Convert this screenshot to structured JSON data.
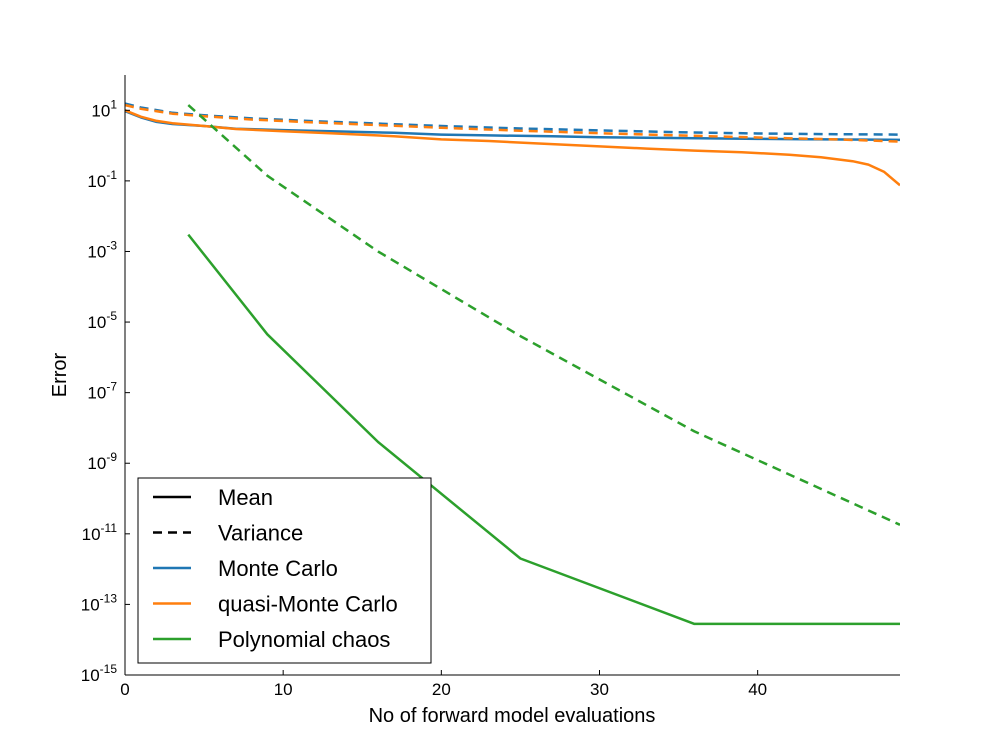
{
  "chart_data": {
    "type": "line",
    "xlabel": "No of forward model evaluations",
    "ylabel": "Error",
    "xlim": [
      0,
      49
    ],
    "ylim": [
      1e-15,
      100
    ],
    "yscale": "log",
    "grid": false,
    "legend_position": "bottom-left",
    "x_ticks": [
      {
        "value": 0,
        "label": "0"
      },
      {
        "value": 10,
        "label": "10"
      },
      {
        "value": 20,
        "label": "20"
      },
      {
        "value": 30,
        "label": "30"
      },
      {
        "value": 40,
        "label": "40"
      }
    ],
    "y_ticks": [
      {
        "value": 10.0,
        "base": "10",
        "exp": "1"
      },
      {
        "value": 0.1,
        "base": "10",
        "exp": "-1"
      },
      {
        "value": 0.001,
        "base": "10",
        "exp": "-3"
      },
      {
        "value": 1e-05,
        "base": "10",
        "exp": "-5"
      },
      {
        "value": 1e-07,
        "base": "10",
        "exp": "-7"
      },
      {
        "value": 1e-09,
        "base": "10",
        "exp": "-9"
      },
      {
        "value": 1e-11,
        "base": "10",
        "exp": "-11"
      },
      {
        "value": 1e-13,
        "base": "10",
        "exp": "-13"
      },
      {
        "value": 1e-15,
        "base": "10",
        "exp": "-15"
      }
    ],
    "legend": [
      {
        "label": "Mean",
        "color": "#000000",
        "dash": false
      },
      {
        "label": "Variance",
        "color": "#000000",
        "dash": true
      },
      {
        "label": "Monte Carlo",
        "color": "#1f77b4",
        "dash": false
      },
      {
        "label": "quasi-Monte Carlo",
        "color": "#ff7f0e",
        "dash": false
      },
      {
        "label": "Polynomial chaos",
        "color": "#2ca02c",
        "dash": false
      }
    ],
    "series": [
      {
        "method": "Monte Carlo",
        "statistic": "Mean",
        "color": "#1f77b4",
        "dash": false,
        "x": [
          0,
          1,
          2,
          3,
          5,
          7,
          10,
          13,
          17,
          20,
          23,
          27,
          30,
          33,
          37,
          40,
          43,
          47,
          49
        ],
        "y": [
          9.5,
          6.3,
          4.7,
          4.1,
          3.6,
          3.0,
          2.75,
          2.55,
          2.3,
          2.05,
          1.95,
          1.83,
          1.73,
          1.66,
          1.6,
          1.55,
          1.52,
          1.48,
          1.45
        ]
      },
      {
        "method": "Monte Carlo",
        "statistic": "Variance",
        "color": "#1f77b4",
        "dash": true,
        "x": [
          0,
          1,
          3,
          5,
          8,
          12,
          16,
          20,
          25,
          30,
          35,
          40,
          45,
          49
        ],
        "y": [
          15.5,
          12,
          8.5,
          7.2,
          5.9,
          4.9,
          4.2,
          3.6,
          3.05,
          2.7,
          2.4,
          2.2,
          2.1,
          2.05
        ]
      },
      {
        "method": "quasi-Monte Carlo",
        "statistic": "Mean",
        "color": "#ff7f0e",
        "dash": false,
        "x": [
          0,
          1,
          2,
          3,
          5,
          7,
          10,
          13,
          17,
          20,
          23,
          26,
          30,
          33,
          36,
          39,
          42,
          44,
          46,
          47,
          48,
          49
        ],
        "y": [
          10,
          6.6,
          5.0,
          4.3,
          3.6,
          2.95,
          2.55,
          2.25,
          1.85,
          1.5,
          1.35,
          1.15,
          0.95,
          0.82,
          0.72,
          0.65,
          0.55,
          0.47,
          0.36,
          0.29,
          0.18,
          0.075
        ]
      },
      {
        "method": "quasi-Monte Carlo",
        "statistic": "Variance",
        "color": "#ff7f0e",
        "dash": true,
        "x": [
          0,
          1,
          3,
          5,
          8,
          12,
          16,
          20,
          25,
          30,
          35,
          40,
          45,
          49
        ],
        "y": [
          14,
          11,
          8.0,
          6.8,
          5.5,
          4.5,
          3.8,
          3.2,
          2.65,
          2.25,
          1.95,
          1.7,
          1.5,
          1.3
        ]
      },
      {
        "method": "Polynomial chaos",
        "statistic": "Mean",
        "color": "#2ca02c",
        "dash": false,
        "x": [
          4,
          9,
          16,
          25,
          36,
          49
        ],
        "y": [
          0.003,
          4.5e-06,
          4e-09,
          2e-12,
          2.8e-14,
          2.8e-14
        ]
      },
      {
        "method": "Polynomial chaos",
        "statistic": "Variance",
        "color": "#2ca02c",
        "dash": true,
        "x": [
          4,
          9,
          16,
          25,
          36,
          49
        ],
        "y": [
          14,
          0.14,
          0.001,
          4e-06,
          8e-09,
          1.8e-11
        ]
      }
    ]
  }
}
